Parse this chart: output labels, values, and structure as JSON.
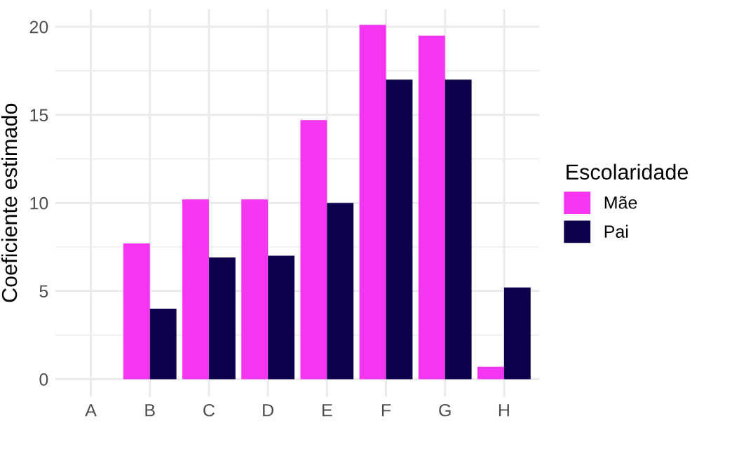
{
  "chart_data": {
    "type": "bar",
    "ylabel": "Coeficiente estimado",
    "legend_title": "Escolaridade",
    "categories": [
      "A",
      "B",
      "C",
      "D",
      "E",
      "F",
      "G",
      "H"
    ],
    "series": [
      {
        "name": "Mãe",
        "color": "#f535f0",
        "values": [
          0,
          7.7,
          10.2,
          10.2,
          14.7,
          20.1,
          19.5,
          0.7
        ]
      },
      {
        "name": "Pai",
        "color": "#0d004c",
        "values": [
          0,
          4.0,
          6.9,
          7.0,
          10.0,
          17.0,
          17.0,
          5.2
        ]
      }
    ],
    "ylim": [
      -1.0,
      21.0
    ],
    "yticks": [
      0,
      5,
      10,
      15,
      20
    ],
    "grid": true,
    "legend": "right"
  }
}
